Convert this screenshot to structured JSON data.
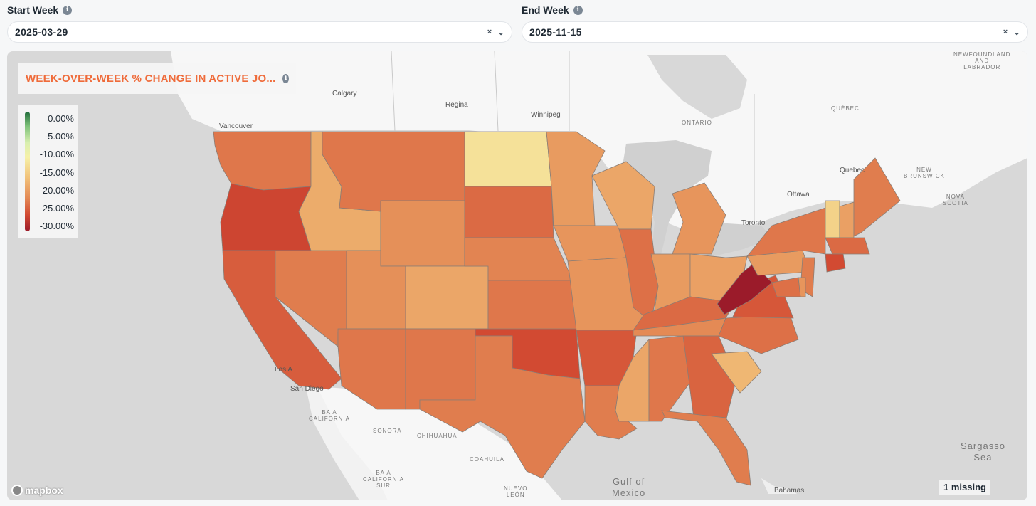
{
  "filters": {
    "start": {
      "label": "Start Week",
      "value": "2025-03-29"
    },
    "end": {
      "label": "End Week",
      "value": "2025-11-15"
    },
    "clear_glyph": "×",
    "dropdown_glyph": "⌄",
    "info_glyph": "i"
  },
  "map": {
    "title": "WEEK-OVER-WEEK % CHANGE IN ACTIVE JO...",
    "legend": {
      "ticks": [
        "0.00%",
        "-5.00%",
        "-10.00%",
        "-15.00%",
        "-20.00%",
        "-25.00%",
        "-30.00%"
      ],
      "colors": [
        "#1f6b3a",
        "#7ec27a",
        "#f6f1a8",
        "#f2c27a",
        "#e48a55",
        "#d24a32",
        "#9b1b2a"
      ]
    },
    "place_labels": {
      "calgary": "Calgary",
      "regina": "Regina",
      "winnipeg": "Winnipeg",
      "vancouver": "Vancouver",
      "ontario": "ONTARIO",
      "quebec_region": "QUÉBEC",
      "quebec_city": "Quebec",
      "new_brunswick": "NEW\nBRUNSWICK",
      "nova_scotia": "NOVA\nSCOTIA",
      "newfoundland": "NEWFOUNDLAND\nAND\nLABRADOR",
      "ottawa": "Ottawa",
      "toronto": "Toronto",
      "los_angeles": "Los A",
      "san_diego": "San Diego",
      "baja_california": "BA A\nCALIFORNIA",
      "sonora": "SONORA",
      "chihuahua": "CHIHUAHUA",
      "coahuila": "COAHUILA",
      "baja_california_sur": "BA A\nCALIFORNIA\nSUR",
      "nuevo_leon": "NUEVO\nLEÓN",
      "gulf_of_mexico": "Gulf of\nMexico",
      "bahamas": "Bahamas",
      "sargasso_sea": "Sargasso\nSea"
    },
    "attribution": "mapbox",
    "missing": "1 missing",
    "states": {
      "WA": -21.5,
      "OR": -25.5,
      "CA": -23.5,
      "NV": -21.0,
      "ID": -17.0,
      "MT": -21.5,
      "WY": -19.5,
      "UT": -19.5,
      "AZ": -21.5,
      "CO": -17.5,
      "NM": -21.5,
      "ND": -13.0,
      "SD": -22.5,
      "NE": -20.5,
      "KS": -21.5,
      "OK": -25.0,
      "TX": -21.0,
      "MN": -18.5,
      "IA": -19.0,
      "MO": -19.0,
      "AR": -24.0,
      "LA": -21.0,
      "WI": -17.5,
      "IL": -22.0,
      "MS": -17.5,
      "MI": -19.0,
      "IN": -18.5,
      "OH": -18.0,
      "KY": -22.5,
      "TN": -20.0,
      "AL": -21.5,
      "GA": -23.0,
      "FL": -21.0,
      "SC": -16.0,
      "NC": -22.0,
      "VA": -24.0,
      "WV": -30.5,
      "PA": -18.5,
      "NY": -21.5,
      "VT": -14.0,
      "NH": -18.0,
      "ME": -21.0,
      "MA": -22.5,
      "CT": -25.0,
      "NJ": -21.0,
      "MD": -22.0,
      "DE": -19.0
    }
  }
}
